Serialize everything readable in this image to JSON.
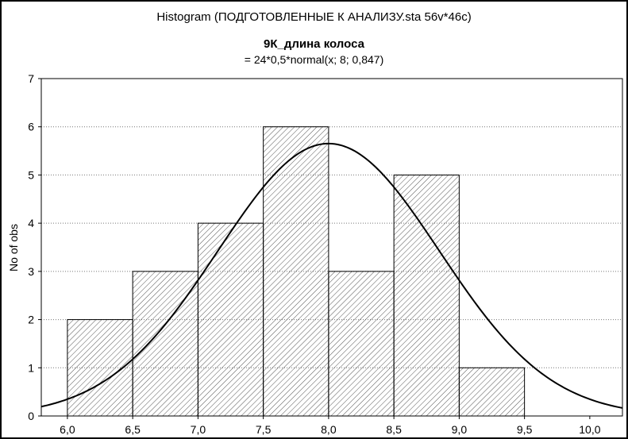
{
  "chart_data": {
    "type": "bar",
    "title": "Histogram (ПОДГОТОВЛЕННЫЕ К АНАЛИЗУ.sta 56v*46c)",
    "subtitle": "9К_длина колоса",
    "formula": "= 24*0,5*normal(x; 8; 0,847)",
    "xlabel": "",
    "ylabel": "No of obs",
    "xlim": [
      5.8,
      10.25
    ],
    "ylim": [
      0,
      7
    ],
    "x_ticks": [
      "6,0",
      "6,5",
      "7,0",
      "7,5",
      "8,0",
      "8,5",
      "9,0",
      "9,5",
      "10,0"
    ],
    "x_tick_values": [
      6.0,
      6.5,
      7.0,
      7.5,
      8.0,
      8.5,
      9.0,
      9.5,
      10.0
    ],
    "y_ticks": [
      "0",
      "1",
      "2",
      "3",
      "4",
      "5",
      "6",
      "7"
    ],
    "bins": [
      {
        "from": 6.0,
        "to": 6.5,
        "count": 2
      },
      {
        "from": 6.5,
        "to": 7.0,
        "count": 3
      },
      {
        "from": 7.0,
        "to": 7.5,
        "count": 4
      },
      {
        "from": 7.5,
        "to": 8.0,
        "count": 6
      },
      {
        "from": 8.0,
        "to": 8.5,
        "count": 3
      },
      {
        "from": 8.5,
        "to": 9.0,
        "count": 5
      },
      {
        "from": 9.0,
        "to": 9.5,
        "count": 1
      }
    ],
    "normal_curve": {
      "n": 24,
      "bin_width": 0.5,
      "mean": 8,
      "sd": 0.847
    },
    "grid": true,
    "bar_fill": "hatched"
  }
}
